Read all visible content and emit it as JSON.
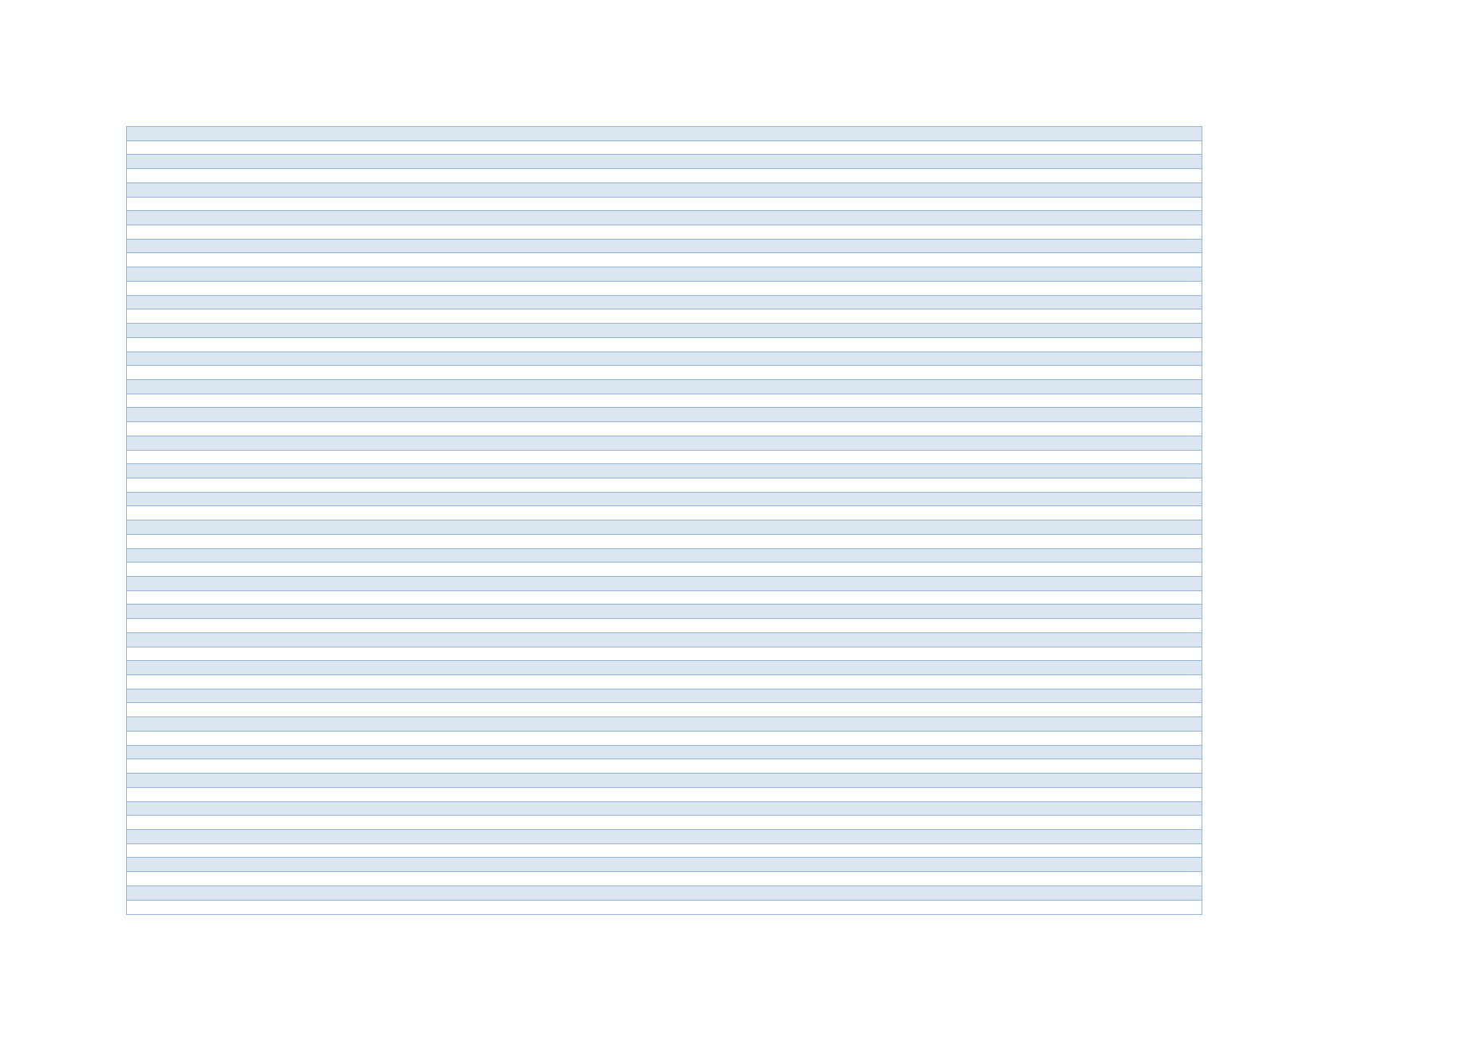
{
  "table": {
    "row_count": 56,
    "colors": {
      "band_fill": "#dce6f1",
      "plain_fill": "#ffffff",
      "border": "#95b3d7"
    },
    "first_row_banded": true
  }
}
